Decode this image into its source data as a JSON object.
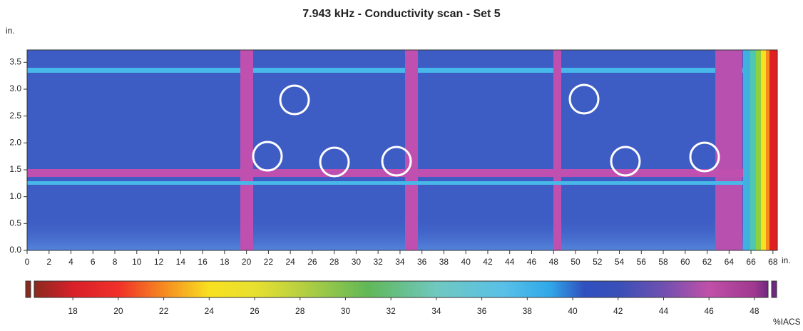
{
  "chart_data": {
    "type": "heatmap",
    "title": "7.943 kHz -  Conductivity scan - Set 5",
    "x_unit": "in.",
    "y_unit": "in.",
    "xlim": [
      0,
      68.4
    ],
    "ylim": [
      0,
      3.73
    ],
    "xticks": [
      0,
      2,
      4,
      6,
      8,
      10,
      12,
      14,
      16,
      18,
      20,
      22,
      24,
      26,
      28,
      30,
      32,
      34,
      36,
      38,
      40,
      42,
      44,
      46,
      48,
      50,
      52,
      54,
      56,
      58,
      60,
      62,
      64,
      66,
      68
    ],
    "yticks": [
      {
        "value": 0,
        "label": "0.0"
      },
      0.5,
      {
        "value": 1,
        "label": "1.0"
      },
      1.5,
      {
        "value": 2,
        "label": "2.0"
      },
      2.5,
      {
        "value": 3,
        "label": "3.0"
      },
      3.5
    ],
    "colorbar": {
      "label": "%IACS",
      "lim": [
        16.3,
        48.6
      ],
      "ticks": [
        18,
        20,
        22,
        24,
        26,
        28,
        30,
        32,
        34,
        36,
        38,
        40,
        42,
        44,
        46,
        48
      ],
      "colorscale": [
        [
          16.3,
          "#8a2a1e"
        ],
        [
          18,
          "#d8202a"
        ],
        [
          20,
          "#f0302a"
        ],
        [
          22,
          "#f58a20"
        ],
        [
          24,
          "#f8e020"
        ],
        [
          26,
          "#e8e030"
        ],
        [
          28,
          "#b8d040"
        ],
        [
          31,
          "#60b858"
        ],
        [
          34,
          "#70c8c0"
        ],
        [
          37,
          "#58c0e8"
        ],
        [
          39,
          "#30a8e8"
        ],
        [
          40.5,
          "#3050c0"
        ],
        [
          42,
          "#3850b8"
        ],
        [
          44,
          "#7050b0"
        ],
        [
          46,
          "#c050a8"
        ],
        [
          48,
          "#a03890"
        ],
        [
          48.6,
          "#702880"
        ]
      ]
    }
  }
}
